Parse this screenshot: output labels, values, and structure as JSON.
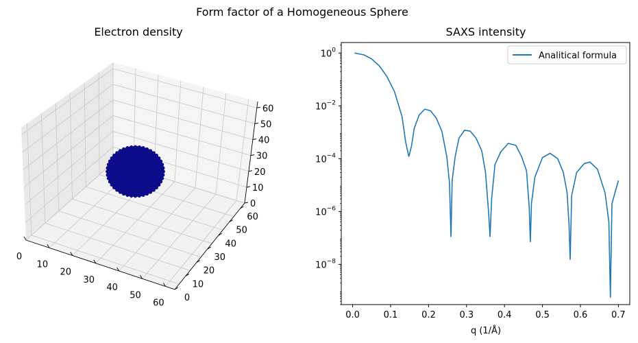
{
  "figure": {
    "suptitle": "Form factor of a Homogeneous Sphere"
  },
  "colors": {
    "line": "#1f77b4",
    "sphere": "#0c0c8a",
    "pane_left": "#e9e9e9",
    "pane_right": "#f5f5f5",
    "pane_floor": "#f2f2f2",
    "grid": "#c8c8c8",
    "axis": "#000000"
  },
  "chart_data": [
    {
      "type": "scatter3d",
      "title": "Electron density",
      "xlabel": "",
      "ylabel": "",
      "zlabel": "",
      "x_ticks": [
        "0",
        "10",
        "20",
        "30",
        "40",
        "50",
        "60"
      ],
      "y_ticks": [
        "0",
        "10",
        "20",
        "30",
        "40",
        "50",
        "60"
      ],
      "z_ticks": [
        "0",
        "10",
        "20",
        "30",
        "40",
        "50",
        "60"
      ],
      "xlim": [
        0,
        64
      ],
      "ylim": [
        0,
        64
      ],
      "zlim": [
        0,
        64
      ],
      "objects": [
        {
          "shape": "sphere",
          "center": [
            32,
            32,
            32
          ],
          "radius": 10
        }
      ]
    },
    {
      "type": "line",
      "title": "SAXS intensity",
      "xlabel": "q (1/Å)",
      "ylabel": "",
      "yscale": "log",
      "xlim": [
        -0.03,
        0.73
      ],
      "ylim": [
        3e-10,
        2.5
      ],
      "x_ticks": [
        "0.0",
        "0.1",
        "0.2",
        "0.3",
        "0.4",
        "0.5",
        "0.6",
        "0.7"
      ],
      "y_ticks": [
        {
          "base": "10",
          "exp": "0"
        },
        {
          "base": "10",
          "exp": "−2"
        },
        {
          "base": "10",
          "exp": "−4"
        },
        {
          "base": "10",
          "exp": "−6"
        },
        {
          "base": "10",
          "exp": "−8"
        }
      ],
      "legend": {
        "position": "upper right",
        "entries": [
          "Analitical formula"
        ]
      },
      "series": [
        {
          "name": "Analitical formula",
          "x": [
            0.005,
            0.03,
            0.05,
            0.07,
            0.09,
            0.11,
            0.13,
            0.14,
            0.148,
            0.155,
            0.162,
            0.175,
            0.19,
            0.205,
            0.22,
            0.235,
            0.248,
            0.255,
            0.259,
            0.262,
            0.27,
            0.28,
            0.295,
            0.31,
            0.325,
            0.34,
            0.35,
            0.358,
            0.362,
            0.366,
            0.375,
            0.39,
            0.41,
            0.43,
            0.445,
            0.458,
            0.465,
            0.468,
            0.471,
            0.48,
            0.5,
            0.52,
            0.54,
            0.555,
            0.565,
            0.57,
            0.573,
            0.577,
            0.59,
            0.61,
            0.625,
            0.645,
            0.665,
            0.675,
            0.679,
            0.683,
            0.7
          ],
          "y": [
            1.0,
            0.85,
            0.6,
            0.33,
            0.13,
            0.035,
            0.004,
            0.0004,
            0.00012,
            0.0003,
            0.0014,
            0.0045,
            0.0075,
            0.0065,
            0.0035,
            0.0011,
            0.00012,
            1.2e-05,
            1.1e-07,
            1.5e-05,
            0.00012,
            0.0006,
            0.0012,
            0.0011,
            0.0006,
            0.0002,
            3e-05,
            1e-06,
            1.1e-07,
            3e-06,
            6e-05,
            0.00018,
            0.00038,
            0.00032,
            0.00012,
            3.5e-05,
            1.5e-06,
            7e-08,
            2e-06,
            2e-05,
            0.00011,
            0.00016,
            0.0001,
            3e-05,
            5e-06,
            3e-07,
            1.5e-08,
            4e-06,
            3e-05,
            6.5e-05,
            7.5e-05,
            4e-05,
            5e-06,
            4e-07,
            5.5e-10,
            2e-06,
            1.5e-05
          ]
        }
      ]
    }
  ]
}
